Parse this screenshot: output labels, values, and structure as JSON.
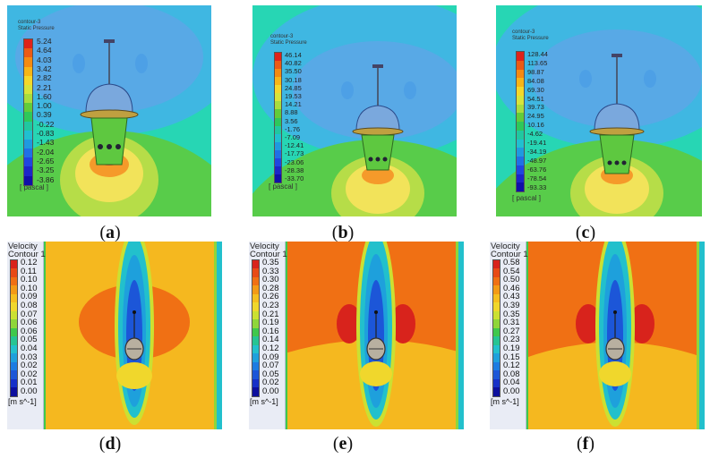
{
  "panels": [
    {
      "id": "a",
      "caption": "a",
      "legend_title": "contour-3",
      "legend_subtitle": "Static Pressure",
      "legend_values": [
        "5.24",
        "4.64",
        "4.03",
        "3.42",
        "2.82",
        "2.21",
        "1.60",
        "1.00",
        "0.39",
        "-0.22",
        "-0.83",
        "-1.43",
        "-2.04",
        "-2.65",
        "-3.25",
        "-3.86"
      ],
      "legend_unit": "[ pascal ]"
    },
    {
      "id": "b",
      "caption": "b",
      "legend_title": "contour-3",
      "legend_subtitle": "Static Pressure",
      "legend_values": [
        "46.14",
        "40.82",
        "35.50",
        "30.18",
        "24.85",
        "19.53",
        "14.21",
        "8.88",
        "3.56",
        "-1.76",
        "-7.09",
        "-12.41",
        "-17.73",
        "-23.06",
        "-28.38",
        "-33.70"
      ],
      "legend_unit": "[ pascal ]"
    },
    {
      "id": "c",
      "caption": "c",
      "legend_title": "contour-3",
      "legend_subtitle": "Static Pressure",
      "legend_values": [
        "128.44",
        "113.65",
        "98.87",
        "84.08",
        "69.30",
        "54.51",
        "39.73",
        "24.95",
        "10.16",
        "-4.62",
        "-19.41",
        "-34.19",
        "-48.97",
        "-63.76",
        "-78.54",
        "-93.33"
      ],
      "legend_unit": "[ pascal ]"
    },
    {
      "id": "d",
      "caption": "d",
      "legend_title": "Velocity",
      "legend_subtitle": "Contour 1",
      "legend_values": [
        "0.12",
        "0.11",
        "0.10",
        "0.10",
        "0.09",
        "0.08",
        "0.07",
        "0.06",
        "0.06",
        "0.05",
        "0.04",
        "0.03",
        "0.02",
        "0.02",
        "0.01",
        "0.00"
      ],
      "legend_unit": "[m s^-1]"
    },
    {
      "id": "e",
      "caption": "e",
      "legend_title": "Velocity",
      "legend_subtitle": "Contour 1",
      "legend_values": [
        "0.35",
        "0.33",
        "0.30",
        "0.28",
        "0.26",
        "0.23",
        "0.21",
        "0.19",
        "0.16",
        "0.14",
        "0.12",
        "0.09",
        "0.07",
        "0.05",
        "0.02",
        "0.00"
      ],
      "legend_unit": "[m s^-1]"
    },
    {
      "id": "f",
      "caption": "f",
      "legend_title": "Velocity",
      "legend_subtitle": "Contour 1",
      "legend_values": [
        "0.58",
        "0.54",
        "0.50",
        "0.46",
        "0.43",
        "0.39",
        "0.35",
        "0.31",
        "0.27",
        "0.23",
        "0.19",
        "0.15",
        "0.12",
        "0.08",
        "0.04",
        "0.00"
      ],
      "legend_unit": "[m s^-1]"
    }
  ],
  "colors": {
    "pressure_scale": [
      "#e0221a",
      "#ec5a14",
      "#f58a10",
      "#f7b516",
      "#f4d82a",
      "#d7e43a",
      "#a8dd3e",
      "#62cc3a",
      "#2ec85a",
      "#20c8a0",
      "#20c0d0",
      "#1f9ae0",
      "#2070e6",
      "#2046e0",
      "#1c26c8",
      "#1010a8"
    ],
    "velocity_scale": [
      "#d8231c",
      "#e84a17",
      "#f07014",
      "#f39a16",
      "#f5bf1f",
      "#f0d72c",
      "#cbe032",
      "#8fd63a",
      "#3fc84c",
      "#26c493",
      "#22c0cc",
      "#1ea0dc",
      "#1c7ce2",
      "#1c56d8",
      "#1630c8",
      "#0c0f9e"
    ]
  }
}
